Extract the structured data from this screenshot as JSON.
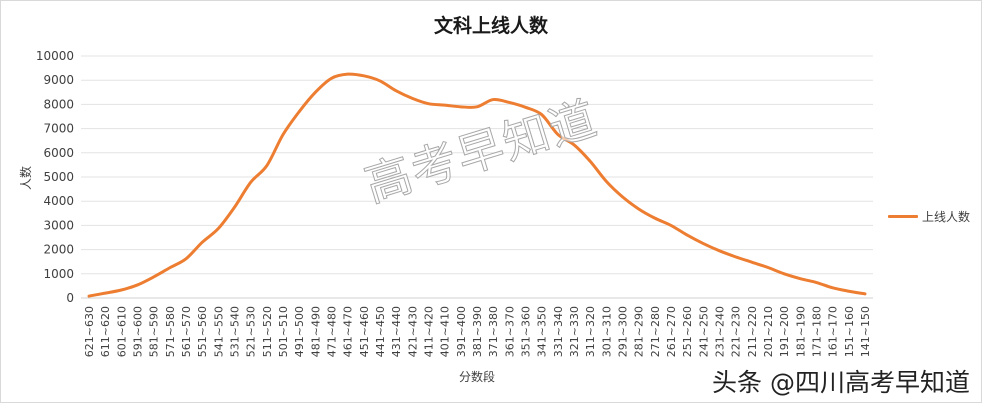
{
  "chart_data": {
    "type": "line",
    "title": "文科上线人数",
    "xlabel": "分数段",
    "ylabel": "人数",
    "ylim": [
      0,
      10000
    ],
    "yticks": [
      0,
      1000,
      2000,
      3000,
      4000,
      5000,
      6000,
      7000,
      8000,
      9000,
      10000
    ],
    "grid": true,
    "legend_position": "right",
    "categories": [
      "621~630",
      "611~620",
      "601~610",
      "591~600",
      "581~590",
      "571~580",
      "561~570",
      "551~560",
      "541~550",
      "531~540",
      "521~530",
      "511~520",
      "501~510",
      "491~500",
      "481~490",
      "471~480",
      "461~470",
      "451~460",
      "441~450",
      "431~440",
      "421~430",
      "411~420",
      "401~410",
      "391~400",
      "381~390",
      "371~380",
      "361~370",
      "351~360",
      "341~350",
      "331~340",
      "321~330",
      "311~320",
      "301~310",
      "291~300",
      "281~290",
      "271~280",
      "261~270",
      "251~260",
      "241~250",
      "231~240",
      "221~230",
      "211~220",
      "201~210",
      "191~200",
      "181~190",
      "171~180",
      "161~170",
      "151~160",
      "141~150"
    ],
    "series": [
      {
        "name": "上线人数",
        "color": "#ed7d31",
        "values": [
          80,
          200,
          330,
          540,
          870,
          1250,
          1620,
          2300,
          2870,
          3750,
          4780,
          5470,
          6750,
          7700,
          8500,
          9080,
          9250,
          9180,
          8970,
          8560,
          8250,
          8030,
          7970,
          7900,
          7900,
          8200,
          8080,
          7880,
          7580,
          6760,
          6330,
          5650,
          4820,
          4180,
          3680,
          3300,
          3000,
          2600,
          2250,
          1950,
          1700,
          1480,
          1260,
          1000,
          800,
          640,
          420,
          280,
          170
        ]
      }
    ]
  },
  "watermark": "高考早知道",
  "credit": "头条 @四川高考早知道"
}
